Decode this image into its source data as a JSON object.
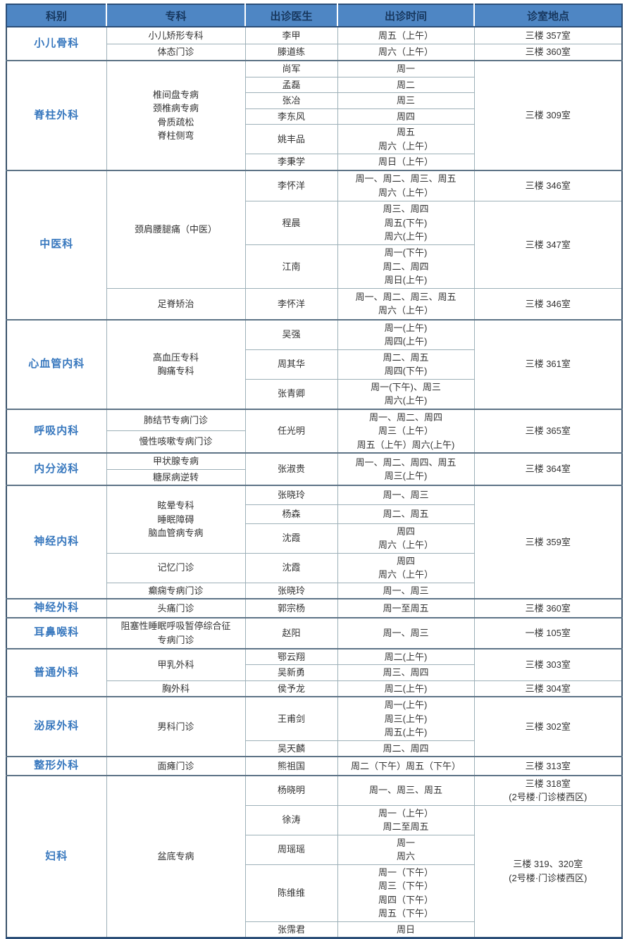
{
  "header": {
    "columns": [
      {
        "key": "department",
        "label": "科别"
      },
      {
        "key": "specialty",
        "label": "专科"
      },
      {
        "key": "doctor",
        "label": "出诊医生"
      },
      {
        "key": "time",
        "label": "出诊时间"
      },
      {
        "key": "location",
        "label": "诊室地点"
      }
    ]
  },
  "colors": {
    "header_bg": "#4e86c4",
    "header_text": "#17375e",
    "department_text": "#3878be",
    "body_text": "#333333",
    "border_light": "#9db0b8",
    "border_group": "#5d7386",
    "border_outer": "#2b4e78"
  },
  "table": {
    "rows": [
      {
        "group_start": true,
        "h": 24,
        "cells": [
          {
            "col": "department",
            "text": "小儿骨科",
            "rowspan": 2
          },
          {
            "col": "specialty",
            "text": "小儿矫形专科"
          },
          {
            "col": "doctor",
            "text": "李甲"
          },
          {
            "col": "time",
            "text": "周五（上午）"
          },
          {
            "col": "location",
            "text": "三楼 357室"
          }
        ]
      },
      {
        "h": 24,
        "cells": [
          {
            "col": "specialty",
            "text": "体态门诊"
          },
          {
            "col": "doctor",
            "text": "滕道练"
          },
          {
            "col": "time",
            "text": "周六（上午）"
          },
          {
            "col": "location",
            "text": "三楼 360室"
          }
        ]
      },
      {
        "group_start": true,
        "h": 22,
        "cells": [
          {
            "col": "department",
            "text": "脊柱外科",
            "rowspan": 6
          },
          {
            "col": "specialty",
            "text": "椎间盘专病\n颈椎病专病\n骨质疏松\n脊柱侧弯",
            "rowspan": 6
          },
          {
            "col": "doctor",
            "text": "尚军"
          },
          {
            "col": "time",
            "text": "周一"
          },
          {
            "col": "location",
            "text": "三楼 309室",
            "rowspan": 6
          }
        ]
      },
      {
        "h": 22,
        "cells": [
          {
            "col": "doctor",
            "text": "孟磊"
          },
          {
            "col": "time",
            "text": "周二"
          }
        ]
      },
      {
        "h": 22,
        "cells": [
          {
            "col": "doctor",
            "text": "张冶"
          },
          {
            "col": "time",
            "text": "周三"
          }
        ]
      },
      {
        "h": 22,
        "cells": [
          {
            "col": "doctor",
            "text": "李东风"
          },
          {
            "col": "time",
            "text": "周四"
          }
        ]
      },
      {
        "h": 38,
        "cells": [
          {
            "col": "doctor",
            "text": "姚丰品"
          },
          {
            "col": "time",
            "text": "周五\n周六（上午）"
          }
        ]
      },
      {
        "h": 22,
        "cells": [
          {
            "col": "doctor",
            "text": "李秉学"
          },
          {
            "col": "time",
            "text": "周日（上午）"
          }
        ]
      },
      {
        "group_start": true,
        "h": 44,
        "cells": [
          {
            "col": "department",
            "text": "中医科",
            "rowspan": 4
          },
          {
            "col": "specialty",
            "text": "颈肩腰腿痛（中医）",
            "rowspan": 3
          },
          {
            "col": "doctor",
            "text": "李怀洋"
          },
          {
            "col": "time",
            "text": "周一、周二、周三、周五\n周六（上午）"
          },
          {
            "col": "location",
            "text": "三楼 346室"
          }
        ]
      },
      {
        "h": 62,
        "cells": [
          {
            "col": "doctor",
            "text": "程晨"
          },
          {
            "col": "time",
            "text": "周三、周四\n周五(下午)\n周六(上午)"
          },
          {
            "col": "location",
            "text": "三楼 347室",
            "rowspan": 2
          }
        ]
      },
      {
        "h": 62,
        "cells": [
          {
            "col": "doctor",
            "text": "江南"
          },
          {
            "col": "time",
            "text": "周一(下午)\n周二、周四\n周日(上午)"
          }
        ]
      },
      {
        "h": 44,
        "cells": [
          {
            "col": "specialty",
            "text": "足脊矫治"
          },
          {
            "col": "doctor",
            "text": "李怀洋"
          },
          {
            "col": "time",
            "text": "周一、周二、周三、周五\n周六（上午）"
          },
          {
            "col": "location",
            "text": "三楼 346室"
          }
        ]
      },
      {
        "group_start": true,
        "h": 42,
        "cells": [
          {
            "col": "department",
            "text": "心血管内科",
            "rowspan": 3
          },
          {
            "col": "specialty",
            "text": "高血压专科\n胸痛专科",
            "rowspan": 3
          },
          {
            "col": "doctor",
            "text": "吴强"
          },
          {
            "col": "time",
            "text": "周一(上午)\n周四(上午)"
          },
          {
            "col": "location",
            "text": "三楼 361室",
            "rowspan": 3
          }
        ]
      },
      {
        "h": 42,
        "cells": [
          {
            "col": "doctor",
            "text": "周其华"
          },
          {
            "col": "time",
            "text": "周二、周五\n周四(下午)"
          }
        ]
      },
      {
        "h": 42,
        "cells": [
          {
            "col": "doctor",
            "text": "张青卿"
          },
          {
            "col": "time",
            "text": "周一(下午)、周三\n周六(上午)"
          }
        ]
      },
      {
        "group_start": true,
        "h": 28,
        "cells": [
          {
            "col": "department",
            "text": "呼吸内科",
            "rowspan": 2
          },
          {
            "col": "specialty",
            "text": "肺结节专病门诊"
          },
          {
            "col": "doctor",
            "text": "任光明",
            "rowspan": 2
          },
          {
            "col": "time",
            "text": "周一、周二、周四\n周三（上午）\n周五（上午）周六(上午)",
            "rowspan": 2
          },
          {
            "col": "location",
            "text": "三楼 365室",
            "rowspan": 2
          }
        ]
      },
      {
        "h": 28,
        "cells": [
          {
            "col": "specialty",
            "text": "慢性咳嗽专病门诊"
          }
        ]
      },
      {
        "group_start": true,
        "h": 21,
        "cells": [
          {
            "col": "department",
            "text": "内分泌科",
            "rowspan": 2
          },
          {
            "col": "specialty",
            "text": "甲状腺专病"
          },
          {
            "col": "doctor",
            "text": "张淑贵",
            "rowspan": 2
          },
          {
            "col": "time",
            "text": "周一、周二、周四、周五\n周三(上午)",
            "rowspan": 2
          },
          {
            "col": "location",
            "text": "三楼 364室",
            "rowspan": 2
          }
        ]
      },
      {
        "h": 21,
        "cells": [
          {
            "col": "specialty",
            "text": "糖尿病逆转"
          }
        ]
      },
      {
        "group_start": true,
        "h": 27,
        "cells": [
          {
            "col": "department",
            "text": "神经内科",
            "rowspan": 5
          },
          {
            "col": "specialty",
            "text": "眩晕专科\n睡眠障碍\n脑血管病专病",
            "rowspan": 3
          },
          {
            "col": "doctor",
            "text": "张晓玲"
          },
          {
            "col": "time",
            "text": "周一、周三"
          },
          {
            "col": "location",
            "text": "三楼 359室",
            "rowspan": 5
          }
        ]
      },
      {
        "h": 27,
        "cells": [
          {
            "col": "doctor",
            "text": "杨森"
          },
          {
            "col": "time",
            "text": "周二、周五"
          }
        ]
      },
      {
        "h": 40,
        "cells": [
          {
            "col": "doctor",
            "text": "沈霞"
          },
          {
            "col": "time",
            "text": "周四\n周六（上午）"
          }
        ]
      },
      {
        "h": 40,
        "cells": [
          {
            "col": "specialty",
            "text": "记忆门诊"
          },
          {
            "col": "doctor",
            "text": "沈霞"
          },
          {
            "col": "time",
            "text": "周四\n周六（上午）"
          }
        ]
      },
      {
        "h": 23,
        "cells": [
          {
            "col": "specialty",
            "text": "癫痫专病门诊"
          },
          {
            "col": "doctor",
            "text": "张晓玲"
          },
          {
            "col": "time",
            "text": "周一、周三"
          }
        ]
      },
      {
        "group_start": true,
        "h": 24,
        "cells": [
          {
            "col": "department",
            "text": "神经外科"
          },
          {
            "col": "specialty",
            "text": "头痛门诊"
          },
          {
            "col": "doctor",
            "text": "郭宗杨"
          },
          {
            "col": "time",
            "text": "周一至周五"
          },
          {
            "col": "location",
            "text": "三楼 360室"
          }
        ]
      },
      {
        "group_start": true,
        "h": 44,
        "cells": [
          {
            "col": "department",
            "text": "耳鼻喉科"
          },
          {
            "col": "specialty",
            "text": "阻塞性睡眠呼吸暂停综合征\n专病门诊"
          },
          {
            "col": "doctor",
            "text": "赵阳"
          },
          {
            "col": "time",
            "text": "周一、周三"
          },
          {
            "col": "location",
            "text": "一楼 105室"
          }
        ]
      },
      {
        "group_start": true,
        "h": 21,
        "cells": [
          {
            "col": "department",
            "text": "普通外科",
            "rowspan": 3
          },
          {
            "col": "specialty",
            "text": "甲乳外科",
            "rowspan": 2
          },
          {
            "col": "doctor",
            "text": "鄂云翔"
          },
          {
            "col": "time",
            "text": "周二(上午)"
          },
          {
            "col": "location",
            "text": "三楼 303室",
            "rowspan": 2
          }
        ]
      },
      {
        "h": 21,
        "cells": [
          {
            "col": "doctor",
            "text": "吴新勇"
          },
          {
            "col": "time",
            "text": "周三、周四"
          }
        ]
      },
      {
        "h": 21,
        "cells": [
          {
            "col": "specialty",
            "text": "胸外科"
          },
          {
            "col": "doctor",
            "text": "侯予龙"
          },
          {
            "col": "time",
            "text": "周二(上午)"
          },
          {
            "col": "location",
            "text": "三楼 304室"
          }
        ]
      },
      {
        "group_start": true,
        "h": 58,
        "cells": [
          {
            "col": "department",
            "text": "泌尿外科",
            "rowspan": 2
          },
          {
            "col": "specialty",
            "text": "男科门诊",
            "rowspan": 2
          },
          {
            "col": "doctor",
            "text": "王甫剑"
          },
          {
            "col": "time",
            "text": "周一(上午)\n周三(上午)\n周五(上午)"
          },
          {
            "col": "location",
            "text": "三楼 302室",
            "rowspan": 2
          }
        ]
      },
      {
        "h": 21,
        "cells": [
          {
            "col": "doctor",
            "text": "吴天麟"
          },
          {
            "col": "time",
            "text": "周二、周四"
          }
        ]
      },
      {
        "group_start": true,
        "h": 22,
        "cells": [
          {
            "col": "department",
            "text": "整形外科"
          },
          {
            "col": "specialty",
            "text": "面瘫门诊"
          },
          {
            "col": "doctor",
            "text": "熊祖国"
          },
          {
            "col": "time",
            "text": "周二（下午）周五（下午）"
          },
          {
            "col": "location",
            "text": "三楼 313室"
          }
        ]
      },
      {
        "group_start": true,
        "h": 42,
        "cells": [
          {
            "col": "department",
            "text": "妇科",
            "rowspan": 5
          },
          {
            "col": "specialty",
            "text": "盆底专病",
            "rowspan": 5
          },
          {
            "col": "doctor",
            "text": "杨晓明"
          },
          {
            "col": "time",
            "text": "周一、周三、周五"
          },
          {
            "col": "location",
            "text": "三楼 318室\n(2号楼·门诊楼西区)"
          }
        ]
      },
      {
        "h": 42,
        "cells": [
          {
            "col": "doctor",
            "text": "徐涛"
          },
          {
            "col": "time",
            "text": "周一（上午）\n周二至周五"
          },
          {
            "col": "location",
            "text": "三楼 319、320室\n(2号楼·门诊楼西区)",
            "rowspan": 4
          }
        ]
      },
      {
        "h": 40,
        "cells": [
          {
            "col": "doctor",
            "text": "周瑶瑶"
          },
          {
            "col": "time",
            "text": "周一\n周六"
          }
        ]
      },
      {
        "h": 78,
        "cells": [
          {
            "col": "doctor",
            "text": "陈维维"
          },
          {
            "col": "time",
            "text": "周一（下午）\n周三（下午）\n周四（下午）\n周五（下午）"
          }
        ]
      },
      {
        "h": 22,
        "cells": [
          {
            "col": "doctor",
            "text": "张霈君"
          },
          {
            "col": "time",
            "text": "周日"
          }
        ]
      }
    ]
  }
}
